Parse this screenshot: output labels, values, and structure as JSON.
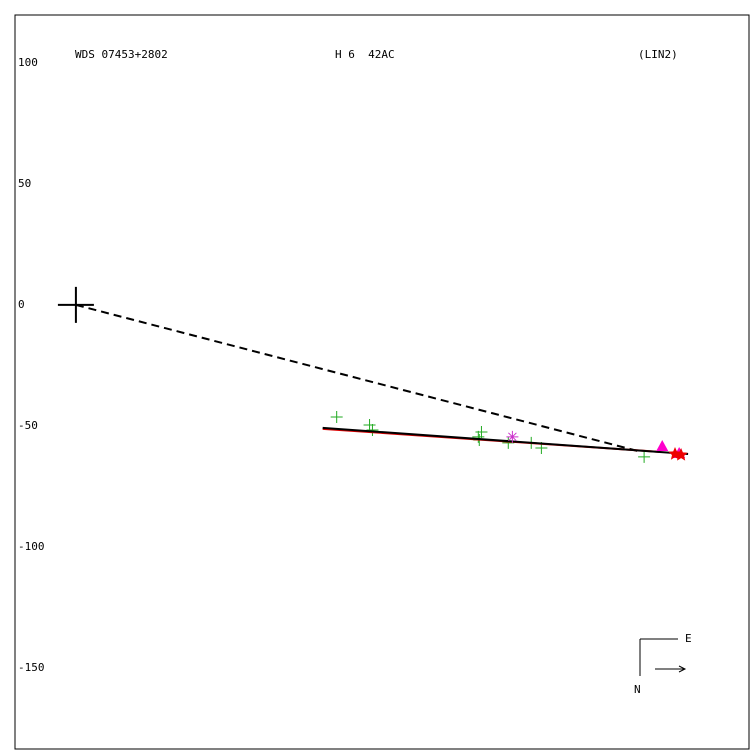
{
  "chart_data": {
    "type": "scatter",
    "title": "WDS 07453+2802",
    "subtitle": "H 6  42AC",
    "annotation": "(LIN2)",
    "compass": {
      "east": "E",
      "north": "N"
    },
    "xlim": [
      -25.2,
      278.5
    ],
    "ylim": [
      -183.5,
      119.8
    ],
    "yticks": [
      100,
      50,
      0,
      -50,
      -100,
      -150
    ],
    "grid": false,
    "series": [
      {
        "marker": "dashed-line",
        "color": "#000000",
        "x": [
          0,
          232.2
        ],
        "y": [
          0,
          -60.3
        ]
      },
      {
        "marker": "cross",
        "color": "#000000",
        "x": [
          0
        ],
        "y": [
          0
        ]
      },
      {
        "marker": "plus",
        "color": "#22aa22",
        "x": [
          107.9,
          121.5,
          122.7,
          166.5,
          167.8,
          166.9,
          178.9,
          188.4,
          192.6,
          235.1
        ],
        "y": [
          -46.3,
          -49.6,
          -51.7,
          -54.5,
          -52.5,
          -55.8,
          -57.0,
          -57.0,
          -59.1,
          -62.8
        ]
      },
      {
        "marker": "line",
        "color": "#dd0000",
        "x": [
          102.1,
          241.3
        ],
        "y": [
          -51.2,
          -60.7
        ]
      },
      {
        "marker": "line",
        "color": "#000000",
        "x": [
          102.1,
          253.3
        ],
        "y": [
          -50.8,
          -61.6
        ]
      },
      {
        "marker": "asterisk",
        "color": "#cc33cc",
        "x": [
          180.6
        ],
        "y": [
          -54.5
        ]
      },
      {
        "marker": "triangle",
        "color": "#ff00cc",
        "x": [
          242.6,
          249.6
        ],
        "y": [
          -58.3,
          -61.2
        ]
      },
      {
        "marker": "star",
        "color": "#ee0000",
        "x": [
          247.9,
          250.4
        ],
        "y": [
          -61.6,
          -62.0
        ]
      }
    ]
  }
}
